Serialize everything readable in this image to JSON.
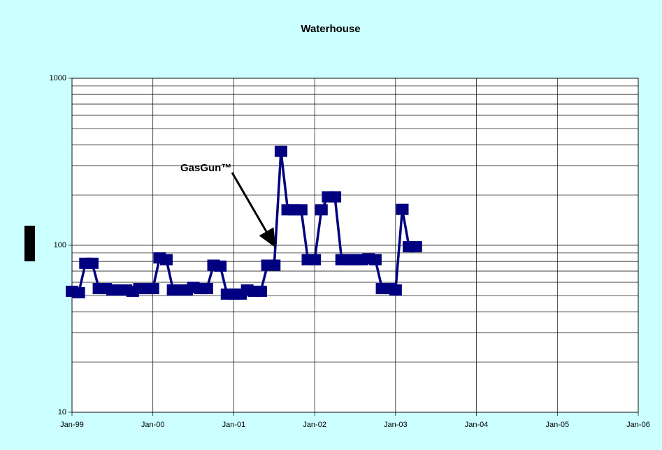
{
  "chart_data": {
    "type": "line",
    "title": "Waterhouse",
    "log_y": true,
    "grid": true,
    "annotation": "GasGun™",
    "x": [
      "1999-01",
      "1999-02",
      "1999-03",
      "1999-04",
      "1999-05",
      "1999-06",
      "1999-07",
      "1999-08",
      "1999-09",
      "1999-10",
      "1999-11",
      "1999-12",
      "2000-01",
      "2000-02",
      "2000-03",
      "2000-04",
      "2000-05",
      "2000-06",
      "2000-07",
      "2000-08",
      "2000-09",
      "2000-10",
      "2000-11",
      "2000-12",
      "2001-01",
      "2001-02",
      "2001-03",
      "2001-04",
      "2001-05",
      "2001-06",
      "2001-07",
      "2001-08",
      "2001-09",
      "2001-10",
      "2001-11",
      "2001-12",
      "2002-01",
      "2002-02",
      "2002-03",
      "2002-04",
      "2002-05",
      "2002-06",
      "2002-07",
      "2002-08",
      "2002-09",
      "2002-10",
      "2002-11",
      "2002-12",
      "2003-01",
      "2003-02",
      "2003-03",
      "2003-04"
    ],
    "series": [
      {
        "name": "Waterhouse",
        "color": "#000080",
        "values": [
          53,
          52,
          78,
          78,
          55,
          55,
          54,
          54,
          54,
          53,
          55,
          55,
          55,
          84,
          82,
          54,
          54,
          54,
          56,
          55,
          55,
          76,
          75,
          51,
          51,
          51,
          54,
          53,
          53,
          76,
          76,
          365,
          163,
          163,
          163,
          82,
          82,
          163,
          195,
          195,
          82,
          82,
          82,
          82,
          83,
          82,
          55,
          55,
          54,
          164,
          98,
          98
        ]
      }
    ],
    "xlim": [
      "1999-01",
      "2006-01"
    ],
    "xticks": [
      {
        "value": "1999-01",
        "label": "Jan-99"
      },
      {
        "value": "2000-01",
        "label": "Jan-00"
      },
      {
        "value": "2001-01",
        "label": "Jan-01"
      },
      {
        "value": "2002-01",
        "label": "Jan-02"
      },
      {
        "value": "2003-01",
        "label": "Jan-03"
      },
      {
        "value": "2004-01",
        "label": "Jan-04"
      },
      {
        "value": "2005-01",
        "label": "Jan-05"
      },
      {
        "value": "2006-01",
        "label": "Jan-06"
      }
    ],
    "ylim": [
      10,
      1000
    ],
    "yticks": [
      10,
      100,
      1000
    ],
    "yticks_minor": [
      20,
      30,
      40,
      50,
      60,
      70,
      80,
      90,
      200,
      300,
      400,
      500,
      600,
      700,
      800,
      900
    ]
  }
}
